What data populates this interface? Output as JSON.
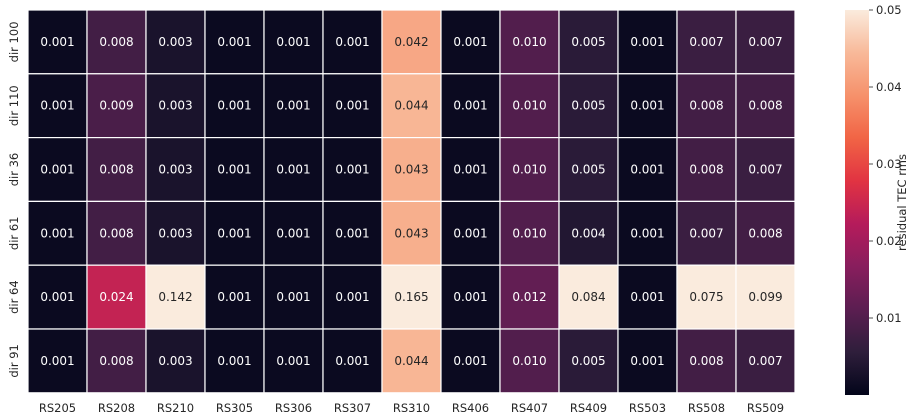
{
  "chart_data": {
    "type": "heatmap",
    "title": "",
    "xlabel": "",
    "ylabel": "",
    "x_categories": [
      "RS205",
      "RS208",
      "RS210",
      "RS305",
      "RS306",
      "RS307",
      "RS310",
      "RS406",
      "RS407",
      "RS409",
      "RS503",
      "RS508",
      "RS509"
    ],
    "y_categories": [
      "dir 100",
      "dir 110",
      "dir 36",
      "dir 61",
      "dir 64",
      "dir 91"
    ],
    "values": [
      [
        0.001,
        0.008,
        0.003,
        0.001,
        0.001,
        0.001,
        0.042,
        0.001,
        0.01,
        0.005,
        0.001,
        0.007,
        0.007
      ],
      [
        0.001,
        0.009,
        0.003,
        0.001,
        0.001,
        0.001,
        0.044,
        0.001,
        0.01,
        0.005,
        0.001,
        0.008,
        0.008
      ],
      [
        0.001,
        0.008,
        0.003,
        0.001,
        0.001,
        0.001,
        0.043,
        0.001,
        0.01,
        0.005,
        0.001,
        0.008,
        0.007
      ],
      [
        0.001,
        0.008,
        0.003,
        0.001,
        0.001,
        0.001,
        0.043,
        0.001,
        0.01,
        0.004,
        0.001,
        0.007,
        0.008
      ],
      [
        0.001,
        0.024,
        0.142,
        0.001,
        0.001,
        0.001,
        0.165,
        0.001,
        0.012,
        0.084,
        0.001,
        0.075,
        0.099
      ],
      [
        0.001,
        0.008,
        0.003,
        0.001,
        0.001,
        0.001,
        0.044,
        0.001,
        0.01,
        0.005,
        0.001,
        0.008,
        0.007
      ]
    ],
    "value_labels": [
      [
        "0.001",
        "0.008",
        "0.003",
        "0.001",
        "0.001",
        "0.001",
        "0.042",
        "0.001",
        "0.010",
        "0.005",
        "0.001",
        "0.007",
        "0.007"
      ],
      [
        "0.001",
        "0.009",
        "0.003",
        "0.001",
        "0.001",
        "0.001",
        "0.044",
        "0.001",
        "0.010",
        "0.005",
        "0.001",
        "0.008",
        "0.008"
      ],
      [
        "0.001",
        "0.008",
        "0.003",
        "0.001",
        "0.001",
        "0.001",
        "0.043",
        "0.001",
        "0.010",
        "0.005",
        "0.001",
        "0.008",
        "0.007"
      ],
      [
        "0.001",
        "0.008",
        "0.003",
        "0.001",
        "0.001",
        "0.001",
        "0.043",
        "0.001",
        "0.010",
        "0.004",
        "0.001",
        "0.007",
        "0.008"
      ],
      [
        "0.001",
        "0.024",
        "0.142",
        "0.001",
        "0.001",
        "0.001",
        "0.165",
        "0.001",
        "0.012",
        "0.084",
        "0.001",
        "0.075",
        "0.099"
      ],
      [
        "0.001",
        "0.008",
        "0.003",
        "0.001",
        "0.001",
        "0.001",
        "0.044",
        "0.001",
        "0.010",
        "0.005",
        "0.001",
        "0.008",
        "0.007"
      ]
    ],
    "color_scale": {
      "colormap": "rocket",
      "vmin": 0.0,
      "vmax": 0.05,
      "ticks": [
        0.01,
        0.02,
        0.03,
        0.04,
        0.05
      ],
      "tick_labels": [
        "0.01",
        "0.02",
        "0.03",
        "0.04",
        "0.05"
      ],
      "label": "residual TEC rms",
      "stops": [
        "#03051a",
        "#2e1e3b",
        "#5b1e51",
        "#881e5d",
        "#b51b5b",
        "#e13342",
        "#f16445",
        "#f6916b",
        "#f8b999",
        "#faebdd"
      ]
    },
    "annotation_colors": {
      "on_dark": "#ffffff",
      "on_light": "#262626"
    },
    "grid": false,
    "cell_border_color": "#ffffff"
  }
}
